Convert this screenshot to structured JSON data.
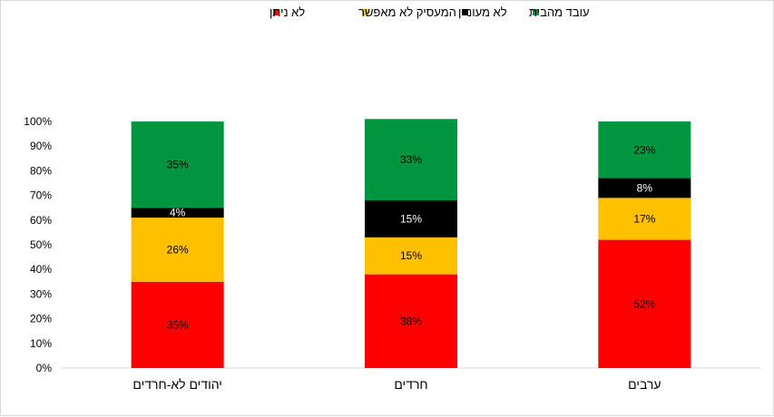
{
  "chart_data": {
    "type": "bar",
    "stacked": true,
    "percent_stacked": true,
    "categories": [
      "יהודים לא-חרדים",
      "חרדים",
      "ערבים"
    ],
    "series": [
      {
        "name": "לא ניתן",
        "color": "#FF0000",
        "values": [
          35,
          38,
          52
        ],
        "labels": [
          "35%",
          "38%",
          "52%"
        ]
      },
      {
        "name": "המעסיק לא מאפשר",
        "color": "#FFC000",
        "values": [
          26,
          15,
          17
        ],
        "labels": [
          "26%",
          "15%",
          "17%"
        ]
      },
      {
        "name": "לא מעוניין",
        "color": "#000000",
        "values": [
          4,
          15,
          8
        ],
        "labels": [
          "4%",
          "15%",
          "8%"
        ]
      },
      {
        "name": "עובד מהבית",
        "color": "#00963F",
        "values": [
          35,
          33,
          23
        ],
        "labels": [
          "35%",
          "33%",
          "23%"
        ]
      }
    ],
    "y_ticks": [
      "0%",
      "10%",
      "20%",
      "30%",
      "40%",
      "50%",
      "60%",
      "70%",
      "80%",
      "90%",
      "100%"
    ],
    "ylim": [
      0,
      100
    ],
    "legend_position": "top",
    "grid": false
  }
}
